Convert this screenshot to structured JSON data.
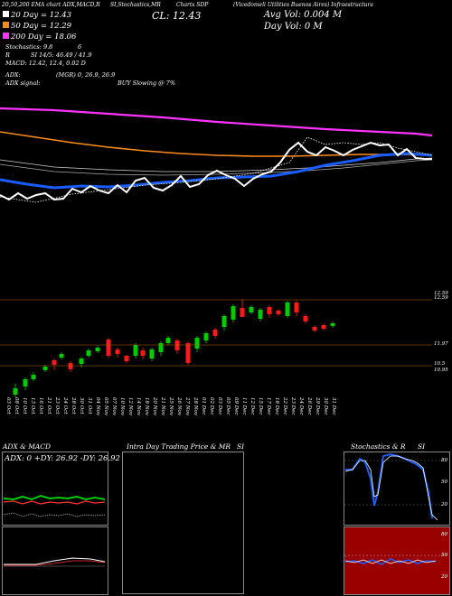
{
  "header": {
    "left_title": "20,50,200 EMA chart ADX,MACD,R",
    "mid_title": "SI,Stochastics,MR",
    "chart_title": "Charts SDP",
    "right_title": "(Vicedomeli Utilities Buenos Aires) Infraestructura"
  },
  "ema_legend": {
    "l20": "20 Day = 12.43",
    "l50": "50 Day = 12.29",
    "l200": "200 Day = 18.06",
    "stoch": "Stochastics: 9.8",
    "stoch_val": "6",
    "rsi_l": "R",
    "rsi": "SI 14/5: 46.49 / 41.9",
    "macd": "MACD: 12.42, 12.4, 0.02  D",
    "adx1": "ADX:",
    "adx1_mid": "(MGR) 0, 26.9, 26.9",
    "adx2": "ADX signal:",
    "adx2_mid": "BUY Slowing @ 7%"
  },
  "quote": {
    "close": "CL: 12.43",
    "avg_vol": "Avg Vol: 0.004  M",
    "day_vol": "Day Vol: 0  M"
  },
  "price_scale": {
    "levels": [
      "12.59",
      "11.97",
      "10.5",
      "10.95"
    ]
  },
  "dates": [
    "03 Oct",
    "08 Oct",
    "10 Oct",
    "13 Oct",
    "16 Oct",
    "21 Oct",
    "23 Oct",
    "24 Oct",
    "28 Oct",
    "30 Oct",
    "31 Oct",
    "04 Nov",
    "05 Nov",
    "07 Nov",
    "10 Nov",
    "12 Nov",
    "14 Nov",
    "18 Nov",
    "20 Nov",
    "21 Nov",
    "25 Nov",
    "26 Nov",
    "27 Nov",
    "28 Nov",
    "01 Dec",
    "02 Dec",
    "03 Dec",
    "05 Dec",
    "09 Dec",
    "11 Dec",
    "12 Dec",
    "15 Dec",
    "17 Dec",
    "18 Dec",
    "22 Dec",
    "23 Dec",
    "24 Dec",
    "26 Dec",
    "29 Dec",
    "30 Dec",
    "31 Dec"
  ],
  "panels": {
    "adx_title": "ADX  & MACD",
    "adx_values": "ADX: 0  +DY: 26.92  -DY: 26.92",
    "intra_title": "Intra Day Trading Price  & MR",
    "intra_si": "SI",
    "stoch_title": "Stochastics & R",
    "stoch_si": "SI",
    "stoch_levels": [
      "80",
      "50",
      "20"
    ],
    "rsi_levels": [
      "80",
      "50",
      "20"
    ]
  },
  "colors": {
    "ema20": "#ffffff",
    "ema50": "#ff8c1a",
    "ema200": "#ff33ff",
    "blue_line": "#1a5cff",
    "up_candle": "#00cc00",
    "down_candle": "#ff1a1a",
    "grid": "#b36b00",
    "rsi_bg": "#990000"
  }
}
